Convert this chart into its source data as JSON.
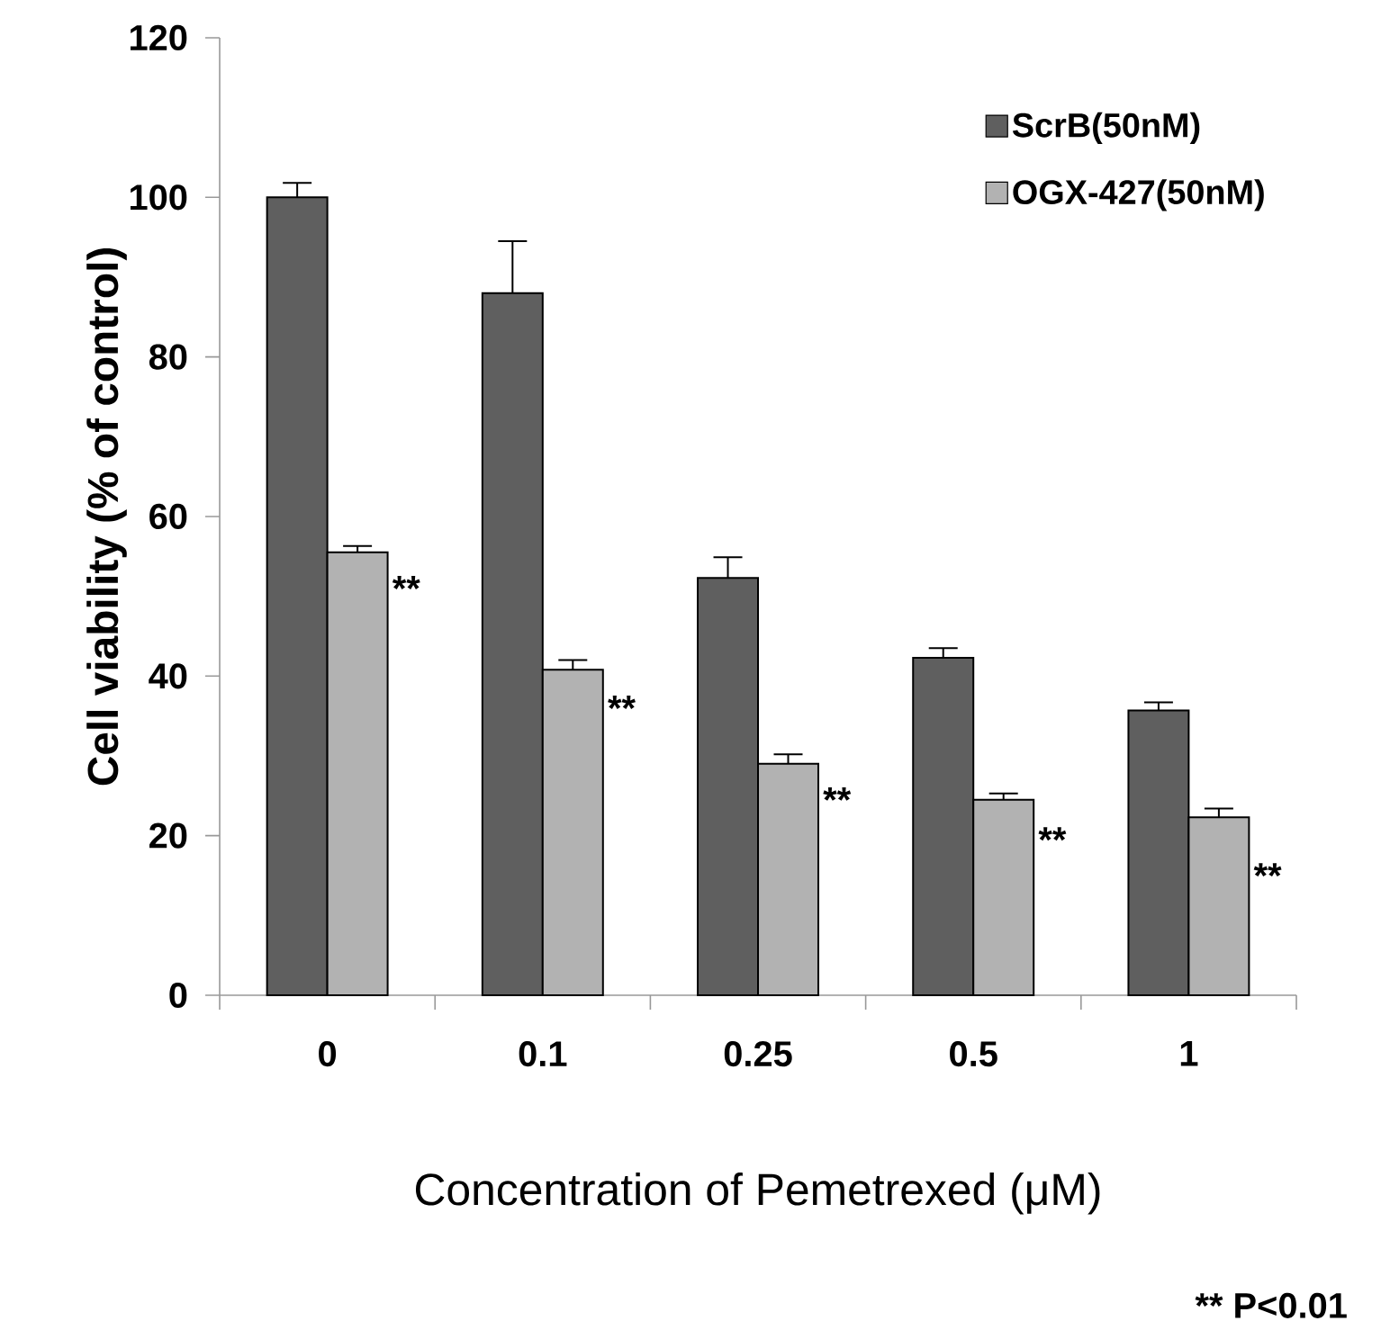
{
  "chart_data": {
    "type": "bar",
    "xlabel": "Concentration of Pemetrexed (μM)",
    "ylabel": "Cell viability (% of control)",
    "categories": [
      "0",
      "0.1",
      "0.25",
      "0.5",
      "1"
    ],
    "series": [
      {
        "name": "ScrB(50nM)",
        "color": "#5f5f5f",
        "values": [
          100,
          88,
          52.3,
          42.3,
          35.7
        ],
        "errors": [
          [
            100,
            101.8
          ],
          [
            88,
            94.5
          ],
          [
            52.3,
            54.9
          ],
          [
            42.3,
            43.5
          ],
          [
            35.7,
            36.7
          ]
        ]
      },
      {
        "name": "OGX-427(50nM)",
        "color": "#b2b2b2",
        "values": [
          55.5,
          40.8,
          29,
          24.5,
          22.3
        ],
        "errors": [
          [
            55.5,
            56.3
          ],
          [
            40.8,
            42
          ],
          [
            29,
            30.2
          ],
          [
            24.5,
            25.3
          ],
          [
            22.3,
            23.4
          ]
        ]
      }
    ],
    "ylim": [
      0,
      120
    ],
    "yticks": [
      0,
      20,
      40,
      60,
      80,
      100,
      120
    ],
    "legend": "top right",
    "annotations": [
      {
        "text": "**",
        "x": "0",
        "y": 51
      },
      {
        "text": "**",
        "x": "0.1",
        "y": 36
      },
      {
        "text": "**",
        "x": "0.25",
        "y": 24.5
      },
      {
        "text": "**",
        "x": "0.5",
        "y": 19.5
      },
      {
        "text": "**",
        "x": "1",
        "y": 15
      },
      "** P<0.01"
    ]
  }
}
